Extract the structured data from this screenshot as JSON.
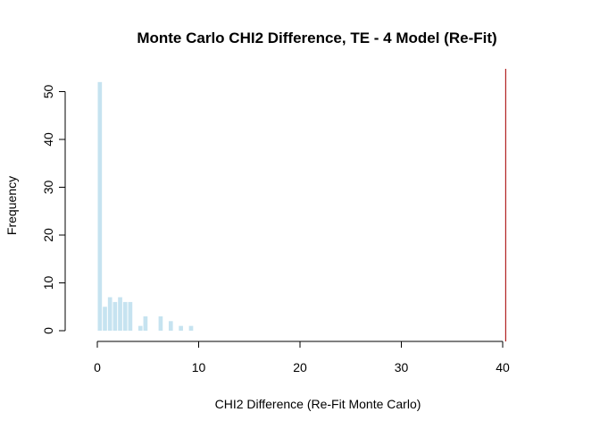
{
  "chart_data": {
    "type": "bar",
    "title": "Monte Carlo CHI2 Difference, TE - 4 Model (Re-Fit)",
    "xlabel": "CHI2 Difference (Re-Fit Monte Carlo)",
    "ylabel": "Frequency",
    "xlim": [
      0,
      40
    ],
    "ylim": [
      0,
      52
    ],
    "x_ticks": [
      "0",
      "10",
      "20",
      "30",
      "40"
    ],
    "y_ticks": [
      "0",
      "10",
      "20",
      "30",
      "40",
      "50"
    ],
    "bin_width": 0.5,
    "bins": [
      {
        "start": 0.0,
        "end": 0.5,
        "count": 52
      },
      {
        "start": 0.5,
        "end": 1.0,
        "count": 5
      },
      {
        "start": 1.0,
        "end": 1.5,
        "count": 7
      },
      {
        "start": 1.5,
        "end": 2.0,
        "count": 6
      },
      {
        "start": 2.0,
        "end": 2.5,
        "count": 7
      },
      {
        "start": 2.5,
        "end": 3.0,
        "count": 6
      },
      {
        "start": 3.0,
        "end": 3.5,
        "count": 6
      },
      {
        "start": 3.5,
        "end": 4.0,
        "count": 0
      },
      {
        "start": 4.0,
        "end": 4.5,
        "count": 1
      },
      {
        "start": 4.5,
        "end": 5.0,
        "count": 3
      },
      {
        "start": 5.0,
        "end": 5.5,
        "count": 0
      },
      {
        "start": 5.5,
        "end": 6.0,
        "count": 0
      },
      {
        "start": 6.0,
        "end": 6.5,
        "count": 3
      },
      {
        "start": 6.5,
        "end": 7.0,
        "count": 0
      },
      {
        "start": 7.0,
        "end": 7.5,
        "count": 2
      },
      {
        "start": 7.5,
        "end": 8.0,
        "count": 0
      },
      {
        "start": 8.0,
        "end": 8.5,
        "count": 1
      },
      {
        "start": 8.5,
        "end": 9.0,
        "count": 0
      },
      {
        "start": 9.0,
        "end": 9.5,
        "count": 1
      }
    ],
    "reference_line": {
      "x": 40.3,
      "color": "#B22222"
    },
    "bar_color": "#C6E3F0",
    "grid": false
  }
}
